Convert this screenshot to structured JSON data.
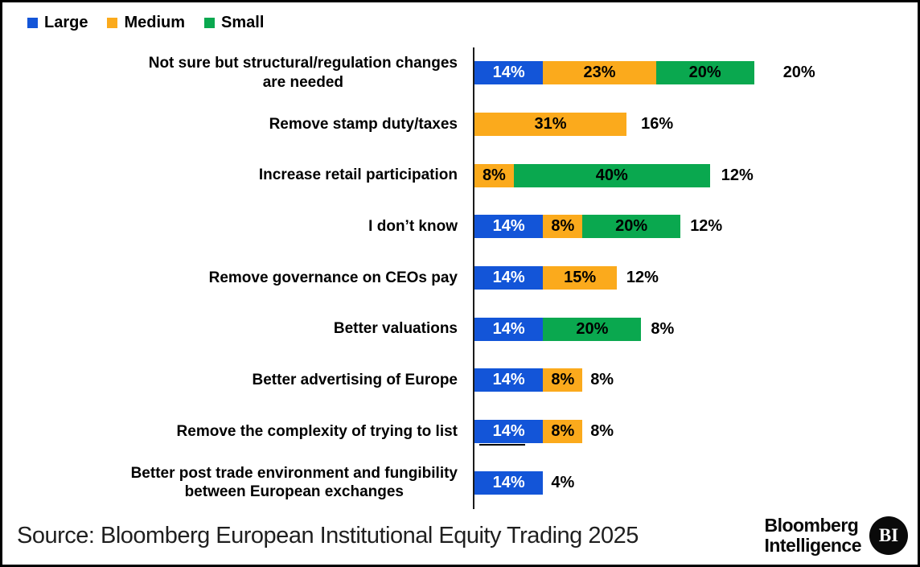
{
  "colors": {
    "large": "#1355d8",
    "medium": "#fbaa1c",
    "small": "#0aa84f",
    "axis": "#1a1a1a",
    "border": "#000000"
  },
  "legend": [
    {
      "label": "Large",
      "color_key": "large"
    },
    {
      "label": "Medium",
      "color_key": "medium"
    },
    {
      "label": "Small",
      "color_key": "small"
    }
  ],
  "chart_data": {
    "type": "bar",
    "orientation": "horizontal",
    "stacked": true,
    "unit": "%",
    "series_names": [
      "Large",
      "Medium",
      "Small"
    ],
    "categories": [
      "Not sure but structural/regulation changes\nare needed",
      "Remove stamp duty/taxes",
      "Increase retail participation",
      "I don’t know",
      "Remove governance on CEOs pay",
      "Better valuations",
      "Better advertising of Europe",
      "Remove the complexity of trying to list",
      "Better post trade environment and fungibility\nbetween European exchanges"
    ],
    "rows": [
      {
        "category": "Not sure but structural/regulation changes\nare needed",
        "segments": [
          {
            "series": "Large",
            "value": 14
          },
          {
            "series": "Medium",
            "value": 23
          },
          {
            "series": "Small",
            "value": 20
          }
        ],
        "total_label": "20%"
      },
      {
        "category": "Remove stamp duty/taxes",
        "segments": [
          {
            "series": "Medium",
            "value": 31
          }
        ],
        "total_label": "16%"
      },
      {
        "category": "Increase retail participation",
        "segments": [
          {
            "series": "Medium",
            "value": 8
          },
          {
            "series": "Small",
            "value": 40
          }
        ],
        "total_label": "12%"
      },
      {
        "category": "I don’t know",
        "segments": [
          {
            "series": "Large",
            "value": 14
          },
          {
            "series": "Medium",
            "value": 8
          },
          {
            "series": "Small",
            "value": 20
          }
        ],
        "total_label": "12%"
      },
      {
        "category": "Remove governance on CEOs pay",
        "segments": [
          {
            "series": "Large",
            "value": 14
          },
          {
            "series": "Medium",
            "value": 15
          }
        ],
        "total_label": "12%"
      },
      {
        "category": "Better valuations",
        "segments": [
          {
            "series": "Large",
            "value": 14
          },
          {
            "series": "Small",
            "value": 20
          }
        ],
        "total_label": "8%"
      },
      {
        "category": "Better advertising of Europe",
        "segments": [
          {
            "series": "Large",
            "value": 14
          },
          {
            "series": "Medium",
            "value": 8
          }
        ],
        "total_label": "8%"
      },
      {
        "category": "Remove the complexity of trying to list",
        "segments": [
          {
            "series": "Large",
            "value": 14,
            "text_underline": true
          },
          {
            "series": "Medium",
            "value": 8
          }
        ],
        "total_label": "8%"
      },
      {
        "category": "Better post trade environment and fungibility\nbetween European exchanges",
        "segments": [
          {
            "series": "Large",
            "value": 14
          }
        ],
        "total_label": "4%"
      }
    ]
  },
  "footer": {
    "source": "Source: Bloomberg European Institutional Equity Trading 2025",
    "brand_line1": "Bloomberg",
    "brand_line2": "Intelligence",
    "badge": "BI"
  }
}
